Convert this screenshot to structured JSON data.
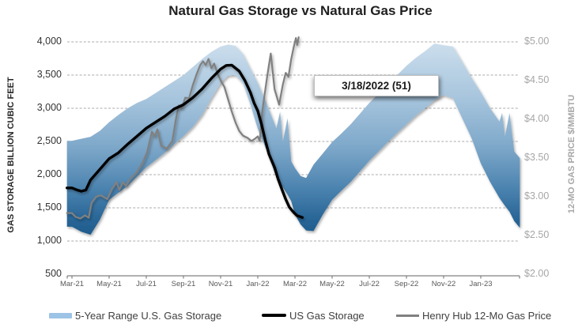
{
  "title": "Natural Gas Storage vs Natural Gas Price",
  "left_axis": {
    "title": "GAS STORAGE BILLION CUBIC FEET",
    "ticks": [
      {
        "label": "4,000",
        "value": 4000
      },
      {
        "label": "3,500",
        "value": 3500
      },
      {
        "label": "3,000",
        "value": 3000
      },
      {
        "label": "2,500",
        "value": 2500
      },
      {
        "label": "2,000",
        "value": 2000
      },
      {
        "label": "1,500",
        "value": 1500
      },
      {
        "label": "1,000",
        "value": 1000
      },
      {
        "label": "500",
        "value": 500
      }
    ]
  },
  "right_axis": {
    "title": "12-MO GAS PRICE $/MMBTU",
    "ticks": [
      {
        "label": "$5.00",
        "value": 5.0
      },
      {
        "label": "$4.50",
        "value": 4.5
      },
      {
        "label": "$4.00",
        "value": 4.0
      },
      {
        "label": "$3.50",
        "value": 3.5
      },
      {
        "label": "$3.00",
        "value": 3.0
      },
      {
        "label": "$2.50",
        "value": 2.5
      },
      {
        "label": "$2.00",
        "value": 2.0
      }
    ]
  },
  "x_axis": {
    "ticks": [
      {
        "label": "Mar-21",
        "m": 0
      },
      {
        "label": "May-21",
        "m": 2
      },
      {
        "label": "Jul-21",
        "m": 4
      },
      {
        "label": "Sep-21",
        "m": 6
      },
      {
        "label": "Nov-21",
        "m": 8
      },
      {
        "label": "Jan-22",
        "m": 10
      },
      {
        "label": "Mar-22",
        "m": 12
      },
      {
        "label": "May-22",
        "m": 14
      },
      {
        "label": "Jul-22",
        "m": 16
      },
      {
        "label": "Sep-22",
        "m": 18
      },
      {
        "label": "Nov-22",
        "m": 20
      },
      {
        "label": "Jan-23",
        "m": 22
      }
    ]
  },
  "annotation": {
    "label": "3/18/2022  (51)"
  },
  "legend": {
    "items": [
      {
        "label": "5-Year Range U.S. Gas Storage",
        "swatch": "band",
        "color": "#9dc3e6"
      },
      {
        "label": "US Gas Storage",
        "swatch": "black-line",
        "color": "#000000"
      },
      {
        "label": "Henry Hub 12-Mo Gas Price",
        "swatch": "gray-line",
        "color": "#808080"
      }
    ]
  },
  "colors": {
    "band_light": "#cfe0ee",
    "band_mid_light": "#a7c5dd",
    "band_mid": "#7da7c9",
    "band_mid_dark": "#4d84b0",
    "band_dark": "#2a6798",
    "band_darkest": "#1c5a8b",
    "storage_line": "#000000",
    "price_line": "#808080",
    "gridline": "#ababab",
    "axis_line": "#808080"
  },
  "chart_data": {
    "type": "line",
    "title": "Natural Gas Storage vs Natural Gas Price",
    "xlabel": "",
    "ylabel_left": "GAS STORAGE BILLION CUBIC FEET",
    "ylabel_right": "12-MO GAS PRICE $/MMBTU",
    "x_unit": "months since Mar-2021 (fractional; 2-month tick spacing Mar-21 .. Jan-23)",
    "left_range": [
      500,
      4000
    ],
    "right_range": [
      2.0,
      5.0
    ],
    "x_range": [
      0,
      24.1
    ],
    "grid": "horizontal-dashed",
    "legend_position": "bottom",
    "annotation": {
      "label": "3/18/2022  (51)",
      "attached_to": "end of US Gas Storage / price series (3/18/2022)"
    },
    "series": [
      {
        "name": "5-Year Range U.S. Gas Storage",
        "type": "area-band",
        "axis": "left",
        "points_m_top_bottom": [
          [
            0,
            2510,
            1215
          ],
          [
            0.5,
            2540,
            1140
          ],
          [
            1,
            2570,
            1095
          ],
          [
            1.5,
            2660,
            1320
          ],
          [
            2,
            2790,
            1620
          ],
          [
            2.5,
            2900,
            1730
          ],
          [
            3,
            3000,
            1830
          ],
          [
            3.5,
            3080,
            1970
          ],
          [
            4,
            3140,
            2110
          ],
          [
            4.5,
            3230,
            2220
          ],
          [
            5,
            3320,
            2330
          ],
          [
            5.5,
            3410,
            2460
          ],
          [
            6,
            3500,
            2580
          ],
          [
            6.5,
            3620,
            2720
          ],
          [
            7,
            3740,
            2900
          ],
          [
            7.5,
            3850,
            3150
          ],
          [
            8,
            3930,
            3380
          ],
          [
            8.4,
            3960,
            3490
          ],
          [
            8.8,
            3940,
            3500
          ],
          [
            9.2,
            3820,
            3380
          ],
          [
            9.6,
            3600,
            3060
          ],
          [
            10,
            3380,
            2690
          ],
          [
            10.5,
            3050,
            2350
          ],
          [
            11,
            2700,
            1960
          ],
          [
            11.2,
            2950,
            1880
          ],
          [
            11.35,
            2500,
            1810
          ],
          [
            11.6,
            2850,
            1700
          ],
          [
            11.8,
            2200,
            1600
          ],
          [
            12,
            2100,
            1400
          ],
          [
            12.3,
            1980,
            1250
          ],
          [
            12.6,
            1950,
            1160
          ],
          [
            13,
            2150,
            1150
          ],
          [
            13.5,
            2320,
            1400
          ],
          [
            14,
            2490,
            1620
          ],
          [
            14.5,
            2620,
            1760
          ],
          [
            15,
            2760,
            1890
          ],
          [
            15.5,
            2920,
            2050
          ],
          [
            16,
            3080,
            2210
          ],
          [
            16.5,
            3220,
            2350
          ],
          [
            17,
            3360,
            2490
          ],
          [
            17.5,
            3500,
            2630
          ],
          [
            18,
            3640,
            2760
          ],
          [
            18.5,
            3760,
            2890
          ],
          [
            19,
            3860,
            3000
          ],
          [
            19.5,
            3975,
            3120
          ],
          [
            20,
            3950,
            3200
          ],
          [
            20.5,
            3930,
            3150
          ],
          [
            21,
            3700,
            2850
          ],
          [
            21.5,
            3460,
            2550
          ],
          [
            22,
            3240,
            2170
          ],
          [
            22.5,
            3000,
            1890
          ],
          [
            23,
            2800,
            1650
          ],
          [
            23.15,
            2930,
            1590
          ],
          [
            23.3,
            2580,
            1530
          ],
          [
            23.55,
            2930,
            1440
          ],
          [
            23.8,
            2350,
            1300
          ],
          [
            24.1,
            2250,
            1200
          ]
        ]
      },
      {
        "name": "US Gas Storage",
        "type": "line",
        "axis": "left",
        "points_m_value": [
          [
            0,
            1800
          ],
          [
            0.25,
            1772
          ],
          [
            0.5,
            1750
          ],
          [
            0.75,
            1768
          ],
          [
            1,
            1920
          ],
          [
            1.5,
            2080
          ],
          [
            2,
            2240
          ],
          [
            2.5,
            2330
          ],
          [
            3,
            2460
          ],
          [
            3.5,
            2580
          ],
          [
            4,
            2700
          ],
          [
            4.5,
            2790
          ],
          [
            5,
            2880
          ],
          [
            5.5,
            2990
          ],
          [
            6,
            3055
          ],
          [
            6.5,
            3160
          ],
          [
            7,
            3290
          ],
          [
            7.5,
            3450
          ],
          [
            8,
            3590
          ],
          [
            8.3,
            3645
          ],
          [
            8.6,
            3650
          ],
          [
            9,
            3560
          ],
          [
            9.3,
            3420
          ],
          [
            9.6,
            3240
          ],
          [
            9.8,
            3080
          ],
          [
            10,
            2960
          ],
          [
            10.2,
            2760
          ],
          [
            10.4,
            2520
          ],
          [
            10.6,
            2310
          ],
          [
            10.9,
            2110
          ],
          [
            11.1,
            1930
          ],
          [
            11.3,
            1775
          ],
          [
            11.5,
            1630
          ],
          [
            11.7,
            1510
          ],
          [
            11.9,
            1440
          ],
          [
            12.1,
            1385
          ],
          [
            12.4,
            1355
          ]
        ]
      },
      {
        "name": "Henry Hub 12-Mo Gas Price",
        "type": "line",
        "axis": "right",
        "points_m_value": [
          [
            0,
            2.79
          ],
          [
            0.2,
            2.74
          ],
          [
            0.45,
            2.72
          ],
          [
            0.7,
            2.76
          ],
          [
            0.9,
            2.73
          ],
          [
            1.05,
            2.92
          ],
          [
            1.3,
            3.0
          ],
          [
            1.55,
            3.02
          ],
          [
            1.9,
            2.97
          ],
          [
            2.15,
            3.1
          ],
          [
            2.4,
            3.19
          ],
          [
            2.55,
            3.09
          ],
          [
            2.75,
            3.19
          ],
          [
            2.9,
            3.14
          ],
          [
            3.1,
            3.22
          ],
          [
            3.5,
            3.32
          ],
          [
            3.8,
            3.44
          ],
          [
            4.05,
            3.58
          ],
          [
            4.3,
            3.84
          ],
          [
            4.45,
            3.78
          ],
          [
            4.6,
            3.87
          ],
          [
            4.8,
            3.66
          ],
          [
            5.1,
            3.62
          ],
          [
            5.4,
            3.72
          ],
          [
            5.6,
            4.01
          ],
          [
            5.75,
            4.18
          ],
          [
            5.9,
            4.14
          ],
          [
            6.1,
            4.28
          ],
          [
            6.3,
            4.27
          ],
          [
            6.5,
            4.44
          ],
          [
            6.7,
            4.58
          ],
          [
            6.9,
            4.7
          ],
          [
            7.05,
            4.75
          ],
          [
            7.2,
            4.7
          ],
          [
            7.35,
            4.78
          ],
          [
            7.5,
            4.66
          ],
          [
            7.65,
            4.72
          ],
          [
            7.85,
            4.58
          ],
          [
            8.05,
            4.48
          ],
          [
            8.2,
            4.42
          ],
          [
            8.4,
            4.26
          ],
          [
            8.6,
            4.1
          ],
          [
            8.8,
            3.96
          ],
          [
            9.0,
            3.85
          ],
          [
            9.2,
            3.79
          ],
          [
            9.45,
            3.76
          ],
          [
            9.65,
            3.72
          ],
          [
            9.85,
            3.75
          ],
          [
            10.0,
            3.78
          ],
          [
            10.1,
            3.72
          ],
          [
            10.25,
            4.12
          ],
          [
            10.5,
            4.55
          ],
          [
            10.7,
            4.85
          ],
          [
            10.9,
            4.39
          ],
          [
            11.15,
            4.19
          ],
          [
            11.35,
            4.45
          ],
          [
            11.5,
            4.6
          ],
          [
            11.65,
            4.55
          ],
          [
            11.8,
            4.78
          ],
          [
            11.95,
            4.95
          ],
          [
            12.05,
            5.05
          ],
          [
            12.12,
            4.96
          ],
          [
            12.2,
            5.06
          ]
        ]
      }
    ]
  }
}
